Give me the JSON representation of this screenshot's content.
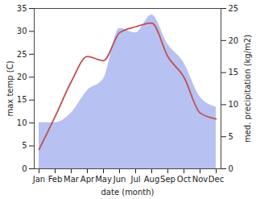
{
  "chart_data": {
    "type": "line",
    "categories": [
      "Jan",
      "Feb",
      "Mar",
      "Apr",
      "May",
      "Jun",
      "Jul",
      "Aug",
      "Sep",
      "Oct",
      "Nov",
      "Dec"
    ],
    "series": [
      {
        "name": "med. precipitation",
        "type": "area",
        "axis": "y2",
        "color": "#aab6f0",
        "values": [
          7.2,
          7.2,
          8.7,
          12.2,
          14,
          21.9,
          21.2,
          24,
          19.4,
          16.5,
          11.2,
          9.6
        ]
      },
      {
        "name": "max temp",
        "type": "line",
        "color": "#c0504d",
        "values": [
          4.2,
          11.4,
          19,
          24.5,
          23.6,
          29.7,
          31,
          31.8,
          24.5,
          20,
          12.2,
          10.9
        ]
      }
    ],
    "x_label": "date (month)",
    "y_label": "max temp (C)",
    "y2_label": "med. precipitation (kg/m2)",
    "ylim": [
      0,
      35
    ],
    "yticks": [
      0,
      5,
      10,
      15,
      20,
      25,
      30,
      35
    ],
    "y2lim": [
      0,
      25
    ],
    "y2ticks": [
      0,
      5,
      10,
      15,
      20,
      25
    ]
  }
}
